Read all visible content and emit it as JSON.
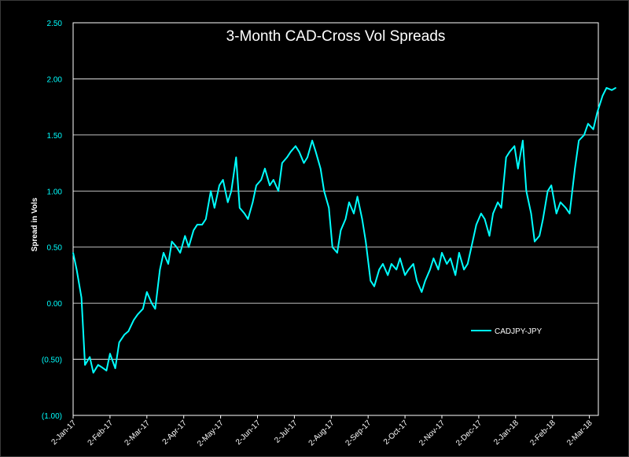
{
  "chart_data": {
    "type": "line",
    "title": "3-Month CAD-Cross Vol Spreads",
    "ylabel": "Spread in Vols",
    "ylim": [
      -1.0,
      2.5
    ],
    "ytick_values": [
      -1.0,
      -0.5,
      0.0,
      0.5,
      1.0,
      1.5,
      2.0,
      2.5
    ],
    "ytick_labels": [
      "(1.00)",
      "(0.50)",
      "0.00",
      "0.50",
      "1.00",
      "1.50",
      "2.00",
      "2.50"
    ],
    "xtick_labels": [
      "2-Jan-17",
      "2-Feb-17",
      "2-Mar-17",
      "2-Apr-17",
      "2-May-17",
      "2-Jun-17",
      "2-Jul-17",
      "2-Aug-17",
      "2-Sep-17",
      "2-Oct-17",
      "2-Nov-17",
      "2-Dec-17",
      "2-Jan-18",
      "2-Feb-18",
      "2-Mar-18"
    ],
    "grid": true,
    "legend_position": "right",
    "colors": {
      "background": "#000000",
      "series": "#00ffff",
      "grid": "#ffffff",
      "ytick": "#00ffff",
      "text": "#ffffff"
    },
    "series": [
      {
        "name": "CADJPY-JPY",
        "x": [
          "2017-01-02",
          "2017-01-05",
          "2017-01-09",
          "2017-01-12",
          "2017-01-16",
          "2017-01-19",
          "2017-01-23",
          "2017-01-26",
          "2017-01-30",
          "2017-02-02",
          "2017-02-06",
          "2017-02-09",
          "2017-02-13",
          "2017-02-16",
          "2017-02-20",
          "2017-02-23",
          "2017-02-27",
          "2017-03-02",
          "2017-03-06",
          "2017-03-09",
          "2017-03-13",
          "2017-03-16",
          "2017-03-20",
          "2017-03-23",
          "2017-03-27",
          "2017-03-30",
          "2017-04-03",
          "2017-04-06",
          "2017-04-10",
          "2017-04-13",
          "2017-04-17",
          "2017-04-20",
          "2017-04-24",
          "2017-04-27",
          "2017-05-01",
          "2017-05-04",
          "2017-05-08",
          "2017-05-11",
          "2017-05-15",
          "2017-05-18",
          "2017-05-22",
          "2017-05-25",
          "2017-05-29",
          "2017-06-01",
          "2017-06-05",
          "2017-06-08",
          "2017-06-12",
          "2017-06-15",
          "2017-06-19",
          "2017-06-22",
          "2017-06-26",
          "2017-06-29",
          "2017-07-03",
          "2017-07-06",
          "2017-07-10",
          "2017-07-13",
          "2017-07-17",
          "2017-07-20",
          "2017-07-24",
          "2017-07-27",
          "2017-07-31",
          "2017-08-03",
          "2017-08-07",
          "2017-08-10",
          "2017-08-14",
          "2017-08-17",
          "2017-08-21",
          "2017-08-24",
          "2017-08-28",
          "2017-08-31",
          "2017-09-04",
          "2017-09-07",
          "2017-09-11",
          "2017-09-14",
          "2017-09-18",
          "2017-09-21",
          "2017-09-25",
          "2017-09-28",
          "2017-10-02",
          "2017-10-05",
          "2017-10-09",
          "2017-10-12",
          "2017-10-16",
          "2017-10-19",
          "2017-10-23",
          "2017-10-26",
          "2017-10-30",
          "2017-11-02",
          "2017-11-06",
          "2017-11-09",
          "2017-11-13",
          "2017-11-16",
          "2017-11-20",
          "2017-11-23",
          "2017-11-27",
          "2017-11-30",
          "2017-12-04",
          "2017-12-07",
          "2017-12-11",
          "2017-12-14",
          "2017-12-18",
          "2017-12-21",
          "2017-12-25",
          "2017-12-28",
          "2018-01-01",
          "2018-01-04",
          "2018-01-08",
          "2018-01-11",
          "2018-01-15",
          "2018-01-18",
          "2018-01-22",
          "2018-01-25",
          "2018-01-29",
          "2018-02-01",
          "2018-02-05",
          "2018-02-08",
          "2018-02-12",
          "2018-02-15",
          "2018-02-19",
          "2018-02-22",
          "2018-02-26",
          "2018-03-01",
          "2018-03-05",
          "2018-03-08",
          "2018-03-12",
          "2018-03-15",
          "2018-03-19",
          "2018-03-22"
        ],
        "y": [
          0.45,
          0.3,
          0.05,
          -0.55,
          -0.48,
          -0.62,
          -0.55,
          -0.57,
          -0.6,
          -0.45,
          -0.58,
          -0.35,
          -0.28,
          -0.25,
          -0.15,
          -0.1,
          -0.05,
          0.1,
          0.0,
          -0.05,
          0.3,
          0.45,
          0.35,
          0.55,
          0.5,
          0.45,
          0.6,
          0.5,
          0.65,
          0.7,
          0.7,
          0.75,
          1.0,
          0.85,
          1.05,
          1.1,
          0.9,
          1.0,
          1.3,
          0.85,
          0.8,
          0.75,
          0.9,
          1.05,
          1.1,
          1.2,
          1.05,
          1.1,
          1.0,
          1.25,
          1.3,
          1.35,
          1.4,
          1.35,
          1.25,
          1.3,
          1.45,
          1.35,
          1.2,
          1.0,
          0.85,
          0.5,
          0.45,
          0.65,
          0.75,
          0.9,
          0.8,
          0.95,
          0.75,
          0.55,
          0.2,
          0.15,
          0.3,
          0.35,
          0.25,
          0.35,
          0.3,
          0.4,
          0.25,
          0.3,
          0.35,
          0.2,
          0.1,
          0.2,
          0.3,
          0.4,
          0.3,
          0.45,
          0.35,
          0.4,
          0.25,
          0.45,
          0.3,
          0.35,
          0.55,
          0.7,
          0.8,
          0.75,
          0.6,
          0.8,
          0.9,
          0.85,
          1.3,
          1.35,
          1.4,
          1.2,
          1.45,
          1.0,
          0.8,
          0.55,
          0.6,
          0.75,
          1.0,
          1.05,
          0.8,
          0.9,
          0.85,
          0.8,
          1.2,
          1.45,
          1.5,
          1.6,
          1.55,
          1.7,
          1.85,
          1.92,
          1.9,
          1.92
        ]
      }
    ]
  }
}
